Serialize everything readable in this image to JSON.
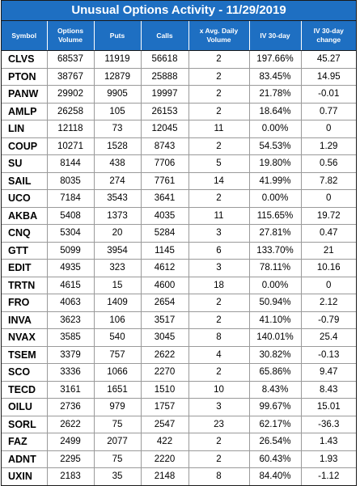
{
  "title": "Unusual Options Activity - 11/29/2019",
  "columns": [
    "Symbol",
    "Options Volume",
    "Puts",
    "Calls",
    "x Avg. Daily Volume",
    "IV 30-day",
    "IV 30-day change"
  ],
  "rows": [
    [
      "CLVS",
      "68537",
      "11919",
      "56618",
      "2",
      "197.66%",
      "45.27"
    ],
    [
      "PTON",
      "38767",
      "12879",
      "25888",
      "2",
      "83.45%",
      "14.95"
    ],
    [
      "PANW",
      "29902",
      "9905",
      "19997",
      "2",
      "21.78%",
      "-0.01"
    ],
    [
      "AMLP",
      "26258",
      "105",
      "26153",
      "2",
      "18.64%",
      "0.77"
    ],
    [
      "LIN",
      "12118",
      "73",
      "12045",
      "11",
      "0.00%",
      "0"
    ],
    [
      "COUP",
      "10271",
      "1528",
      "8743",
      "2",
      "54.53%",
      "1.29"
    ],
    [
      "SU",
      "8144",
      "438",
      "7706",
      "5",
      "19.80%",
      "0.56"
    ],
    [
      "SAIL",
      "8035",
      "274",
      "7761",
      "14",
      "41.99%",
      "7.82"
    ],
    [
      "UCO",
      "7184",
      "3543",
      "3641",
      "2",
      "0.00%",
      "0"
    ],
    [
      "AKBA",
      "5408",
      "1373",
      "4035",
      "11",
      "115.65%",
      "19.72"
    ],
    [
      "CNQ",
      "5304",
      "20",
      "5284",
      "3",
      "27.81%",
      "0.47"
    ],
    [
      "GTT",
      "5099",
      "3954",
      "1145",
      "6",
      "133.70%",
      "21"
    ],
    [
      "EDIT",
      "4935",
      "323",
      "4612",
      "3",
      "78.11%",
      "10.16"
    ],
    [
      "TRTN",
      "4615",
      "15",
      "4600",
      "18",
      "0.00%",
      "0"
    ],
    [
      "FRO",
      "4063",
      "1409",
      "2654",
      "2",
      "50.94%",
      "2.12"
    ],
    [
      "INVA",
      "3623",
      "106",
      "3517",
      "2",
      "41.10%",
      "-0.79"
    ],
    [
      "NVAX",
      "3585",
      "540",
      "3045",
      "8",
      "140.01%",
      "25.4"
    ],
    [
      "TSEM",
      "3379",
      "757",
      "2622",
      "4",
      "30.82%",
      "-0.13"
    ],
    [
      "SCO",
      "3336",
      "1066",
      "2270",
      "2",
      "65.86%",
      "9.47"
    ],
    [
      "TECD",
      "3161",
      "1651",
      "1510",
      "10",
      "8.43%",
      "8.43"
    ],
    [
      "OILU",
      "2736",
      "979",
      "1757",
      "3",
      "99.67%",
      "15.01"
    ],
    [
      "SORL",
      "2622",
      "75",
      "2547",
      "23",
      "62.17%",
      "-36.3"
    ],
    [
      "FAZ",
      "2499",
      "2077",
      "422",
      "2",
      "26.54%",
      "1.43"
    ],
    [
      "ADNT",
      "2295",
      "75",
      "2220",
      "2",
      "60.43%",
      "1.93"
    ],
    [
      "UXIN",
      "2183",
      "35",
      "2148",
      "8",
      "84.40%",
      "-1.12"
    ]
  ],
  "colors": {
    "header_bg": "#1e6fc2",
    "header_text": "#ffffff",
    "grid": "#9a9a9a"
  }
}
